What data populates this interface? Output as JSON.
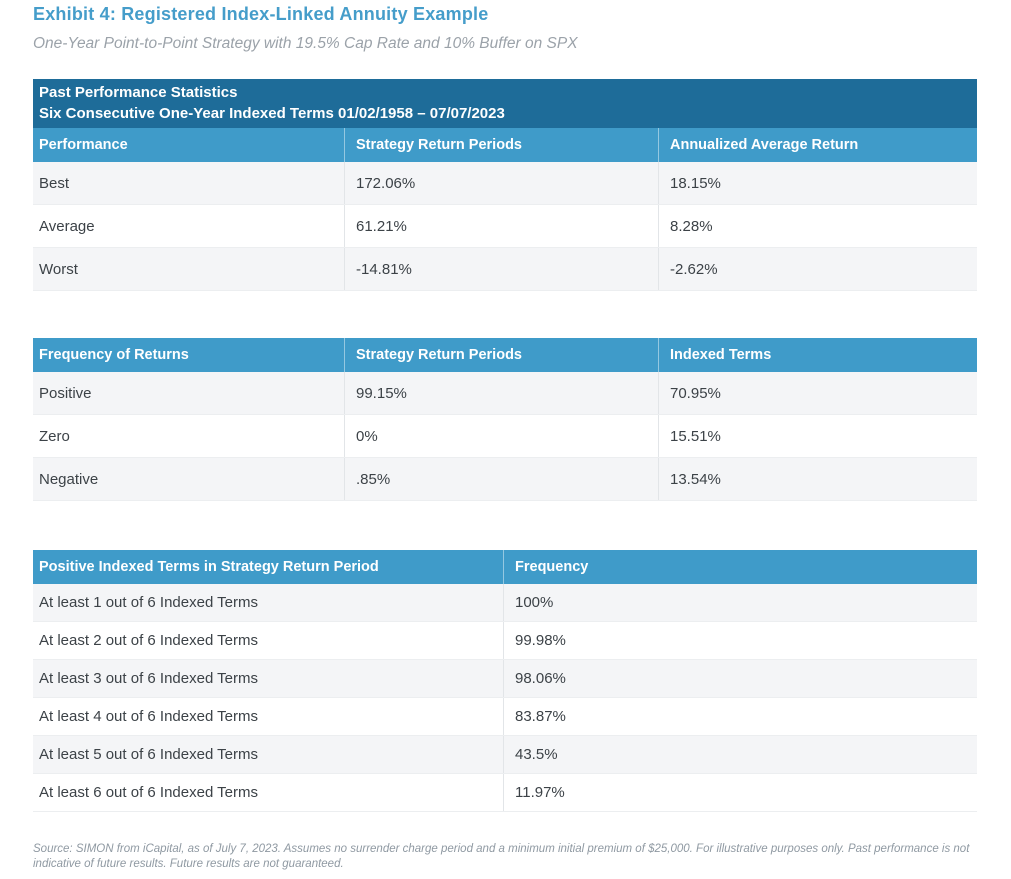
{
  "page": {
    "title": "Exhibit 4: Registered Index-Linked Annuity Example",
    "subtitle": "One-Year Point-to-Point Strategy with 19.5% Cap Rate and 10% Buffer on SPX",
    "source_note": "Source: SIMON from iCapital, as of July 7, 2023. Assumes no surrender charge period and a minimum initial premium of $25,000. For illustrative purposes only. Past performance is not indicative of future results. Future results are not guaranteed."
  },
  "colors": {
    "title_blue": "#459DCA",
    "band_dark_blue": "#1E6C99",
    "header_blue": "#3F9BC9",
    "alt_row_gray": "#F4F5F7",
    "body_text": "#3C4247",
    "muted_text": "#8F99A2"
  },
  "tables": {
    "past_performance": {
      "band_line1": "Past Performance Statistics",
      "band_line2": "Six Consecutive One-Year Indexed Terms 01/02/1958 – 07/07/2023",
      "headers": [
        "Performance",
        "Strategy Return Periods",
        "Annualized Average Return"
      ],
      "rows": [
        [
          "Best",
          "172.06%",
          "18.15%"
        ],
        [
          "Average",
          "61.21%",
          "8.28%"
        ],
        [
          "Worst",
          "-14.81%",
          "-2.62%"
        ]
      ]
    },
    "frequency_of_returns": {
      "headers": [
        "Frequency of Returns",
        "Strategy Return Periods",
        "Indexed Terms"
      ],
      "rows": [
        [
          "Positive",
          "99.15%",
          "70.95%"
        ],
        [
          "Zero",
          "0%",
          "15.51%"
        ],
        [
          "Negative",
          ".85%",
          "13.54%"
        ]
      ]
    },
    "positive_indexed_terms": {
      "headers": [
        "Positive Indexed Terms in Strategy Return Period",
        "Frequency"
      ],
      "rows": [
        [
          "At least 1 out of 6 Indexed Terms",
          "100%"
        ],
        [
          "At least 2 out of 6 Indexed Terms",
          "99.98%"
        ],
        [
          "At least 3 out of 6 Indexed Terms",
          "98.06%"
        ],
        [
          "At least 4 out of 6 Indexed Terms",
          "83.87%"
        ],
        [
          "At least 5 out of 6 Indexed Terms",
          "43.5%"
        ],
        [
          "At least 6 out of 6 Indexed Terms",
          "11.97%"
        ]
      ]
    }
  }
}
